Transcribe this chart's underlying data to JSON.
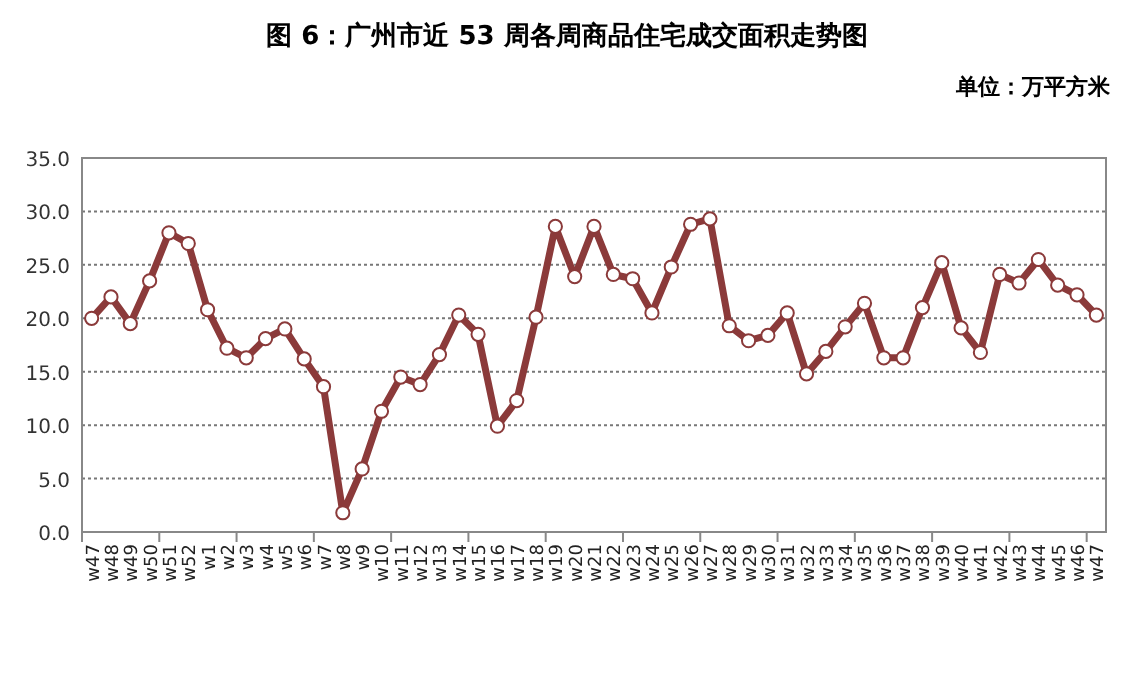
{
  "chart_data": {
    "type": "line",
    "title": "图 6：广州市近 53 周各周商品住宅成交面积走势图",
    "subtitle": "单位：万平方米",
    "categories": [
      "w47",
      "w48",
      "w49",
      "w50",
      "w51",
      "w52",
      "w1",
      "w2",
      "w3",
      "w4",
      "w5",
      "w6",
      "w7",
      "w8",
      "w9",
      "w10",
      "w11",
      "w12",
      "w13",
      "w14",
      "w15",
      "w16",
      "w17",
      "w18",
      "w19",
      "w20",
      "w21",
      "w22",
      "w23",
      "w24",
      "w25",
      "w26",
      "w27",
      "w28",
      "w29",
      "w30",
      "w31",
      "w32",
      "w33",
      "w34",
      "w35",
      "w36",
      "w37",
      "w38",
      "w39",
      "w40",
      "w41",
      "w42",
      "w43",
      "w44",
      "w45",
      "w46",
      "w47"
    ],
    "series": [
      {
        "color": "#8b3a3a",
        "values": [
          20.0,
          22.0,
          19.5,
          23.5,
          28.0,
          27.0,
          20.8,
          17.2,
          16.3,
          18.1,
          19.0,
          16.2,
          13.6,
          1.8,
          5.9,
          11.3,
          14.5,
          13.8,
          16.6,
          20.3,
          18.5,
          9.9,
          12.3,
          20.1,
          28.6,
          23.9,
          28.6,
          24.1,
          23.7,
          20.5,
          24.8,
          28.8,
          29.3,
          19.3,
          17.9,
          18.4,
          20.5,
          14.8,
          16.9,
          19.2,
          21.4,
          16.3,
          16.3,
          21.0,
          25.2,
          19.1,
          16.8,
          24.1,
          23.3,
          25.5,
          23.1,
          22.2,
          20.3
        ]
      }
    ],
    "ylim": [
      0,
      35
    ],
    "yticks": [
      {
        "value": 0,
        "label": "0.0"
      },
      {
        "value": 5,
        "label": "5.0"
      },
      {
        "value": 10,
        "label": "10.0"
      },
      {
        "value": 15,
        "label": "15.0"
      },
      {
        "value": 20,
        "label": "20.0"
      },
      {
        "value": 25,
        "label": "25.0"
      },
      {
        "value": 30,
        "label": "30.0"
      },
      {
        "value": 35,
        "label": "35.0"
      }
    ],
    "grid": "y",
    "marker": "circle",
    "line_style": "solid"
  }
}
